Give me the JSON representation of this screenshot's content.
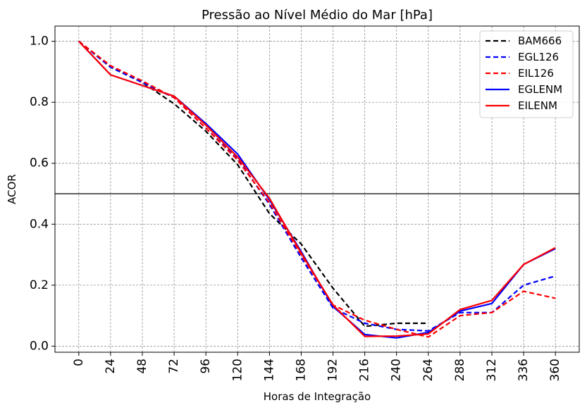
{
  "chart_data": {
    "type": "line",
    "title": "Pressão ao Nível Médio do Mar [hPa]",
    "xlabel": "Horas de Integração",
    "ylabel": "ACOR",
    "x": [
      0,
      24,
      48,
      72,
      96,
      120,
      144,
      168,
      192,
      216,
      240,
      264,
      288,
      312,
      336,
      360
    ],
    "x_tick_labels": [
      "0",
      "24",
      "48",
      "72",
      "96",
      "120",
      "144",
      "168",
      "192",
      "216",
      "240",
      "264",
      "288",
      "312",
      "336",
      "360"
    ],
    "y_ticks": [
      0.0,
      0.2,
      0.4,
      0.6,
      0.8,
      1.0
    ],
    "y_tick_labels": [
      "0.0",
      "0.2",
      "0.4",
      "0.6",
      "0.8",
      "1.0"
    ],
    "ylim": [
      -0.02,
      1.05
    ],
    "grid": true,
    "reference_line": 0.5,
    "legend_position": "top-right",
    "series": [
      {
        "name": "BAM666",
        "color": "#000000",
        "dash": true,
        "values": [
          1.0,
          0.915,
          0.865,
          0.795,
          0.705,
          0.595,
          0.435,
          0.335,
          0.19,
          0.065,
          0.075,
          0.075,
          null,
          null,
          null,
          null
        ]
      },
      {
        "name": "EGL126",
        "color": "#0000ff",
        "dash": true,
        "values": [
          1.0,
          0.915,
          0.865,
          0.815,
          0.715,
          0.615,
          0.465,
          0.29,
          0.125,
          0.075,
          0.055,
          0.05,
          0.11,
          0.11,
          0.2,
          0.23
        ]
      },
      {
        "name": "EIL126",
        "color": "#ff0000",
        "dash": true,
        "values": [
          1.0,
          0.92,
          0.87,
          0.815,
          0.715,
          0.61,
          0.47,
          0.3,
          0.135,
          0.085,
          0.055,
          0.03,
          0.1,
          0.11,
          0.18,
          0.157
        ]
      },
      {
        "name": "EGLENM",
        "color": "#0000ff",
        "dash": false,
        "values": [
          1.0,
          0.89,
          0.855,
          0.82,
          0.73,
          0.63,
          0.48,
          0.31,
          0.13,
          0.038,
          0.027,
          0.045,
          0.115,
          0.14,
          0.268,
          0.32
        ]
      },
      {
        "name": "EILENM",
        "color": "#ff0000",
        "dash": false,
        "values": [
          1.0,
          0.89,
          0.855,
          0.82,
          0.725,
          0.62,
          0.485,
          0.305,
          0.135,
          0.032,
          0.033,
          0.04,
          0.12,
          0.15,
          0.268,
          0.323
        ]
      }
    ]
  }
}
